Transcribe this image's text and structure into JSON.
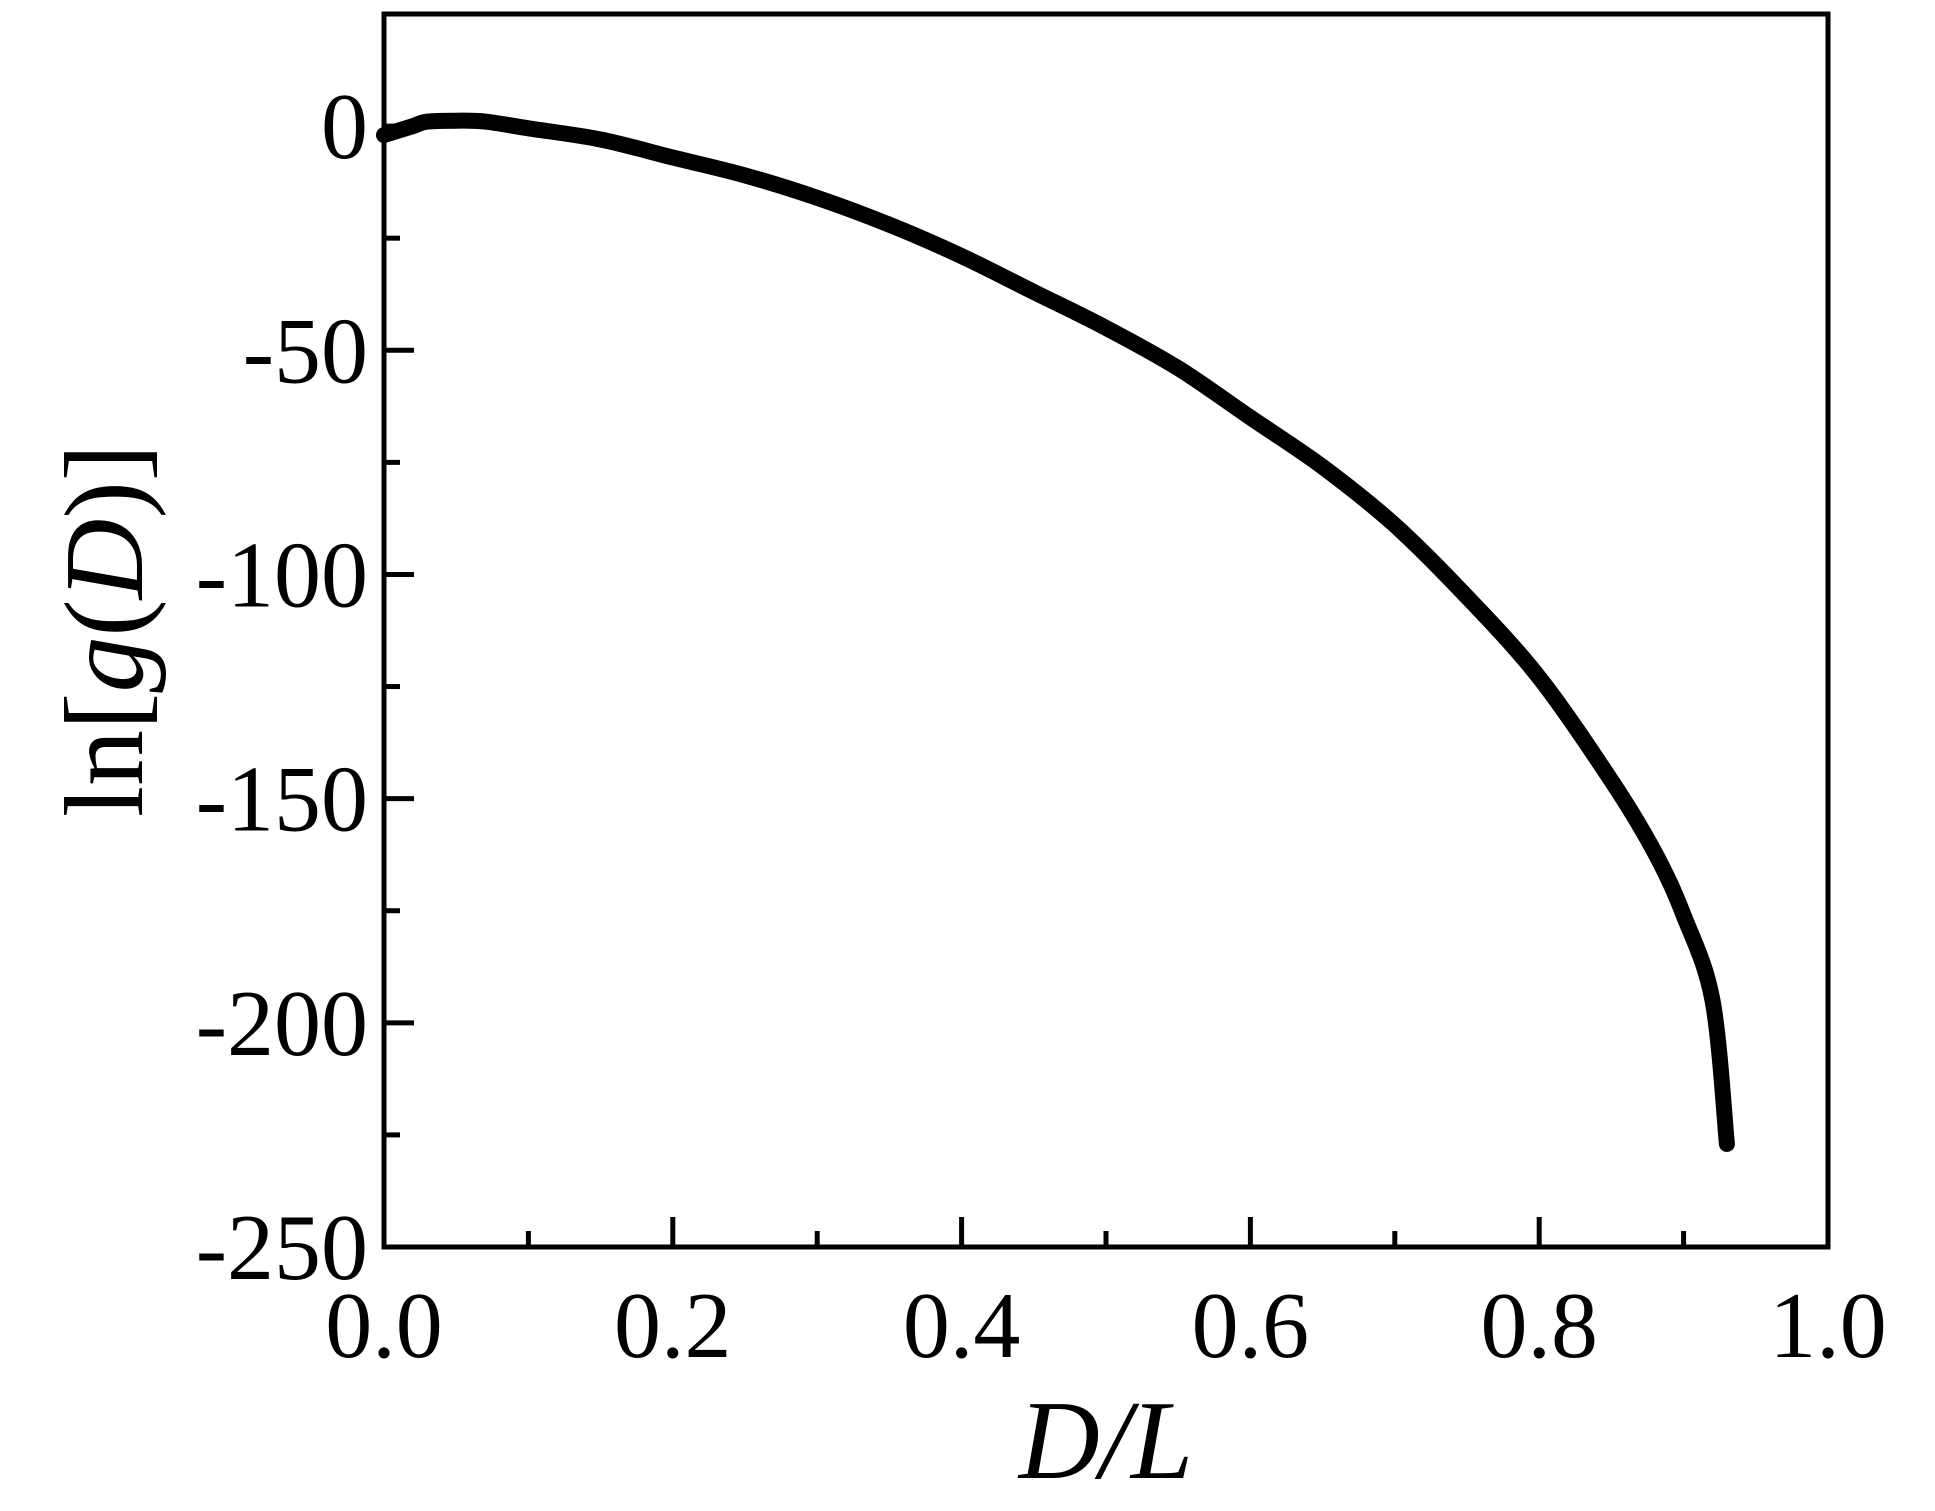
{
  "chart_data": {
    "type": "line",
    "title": "",
    "xlabel": {
      "parts": [
        {
          "text": "D",
          "italic": true
        },
        {
          "text": "/",
          "italic": true
        },
        {
          "text": "L",
          "italic": true
        }
      ]
    },
    "ylabel": {
      "parts": [
        {
          "text": "ln[",
          "italic": false
        },
        {
          "text": "g",
          "italic": true
        },
        {
          "text": "(",
          "italic": false
        },
        {
          "text": "D",
          "italic": true
        },
        {
          "text": ")]",
          "italic": false
        }
      ]
    },
    "xlim": [
      0.0,
      1.0
    ],
    "ylim": [
      -250,
      25
    ],
    "xticks": [
      0.0,
      0.2,
      0.4,
      0.6,
      0.8,
      1.0
    ],
    "xtick_labels": [
      "0.0",
      "0.2",
      "0.4",
      "0.6",
      "0.8",
      "1.0"
    ],
    "x_minor_ticks": [
      0.1,
      0.3,
      0.5,
      0.7,
      0.9
    ],
    "yticks": [
      0,
      -50,
      -100,
      -150,
      -200,
      -250
    ],
    "ytick_labels": [
      "0",
      "-50",
      "-100",
      "-150",
      "-200",
      "-250"
    ],
    "y_minor_ticks": [
      -25,
      -75,
      -125,
      -175,
      -225
    ],
    "grid": false,
    "legend": "none",
    "line_color": "#000000",
    "series": [
      {
        "x": [
          0.0,
          0.01,
          0.02,
          0.03,
          0.05,
          0.07,
          0.1,
          0.15,
          0.2,
          0.25,
          0.3,
          0.35,
          0.4,
          0.45,
          0.5,
          0.55,
          0.6,
          0.65,
          0.7,
          0.75,
          0.8,
          0.85,
          0.88,
          0.9,
          0.92,
          0.93
        ],
        "y": [
          -2,
          -1,
          0,
          1,
          1.2,
          1,
          -0.5,
          -3,
          -7,
          -11,
          -16,
          -22,
          -29,
          -37,
          -45,
          -54,
          -65,
          -76,
          -89,
          -105,
          -123,
          -146,
          -162,
          -176,
          -195,
          -227
        ]
      }
    ]
  }
}
